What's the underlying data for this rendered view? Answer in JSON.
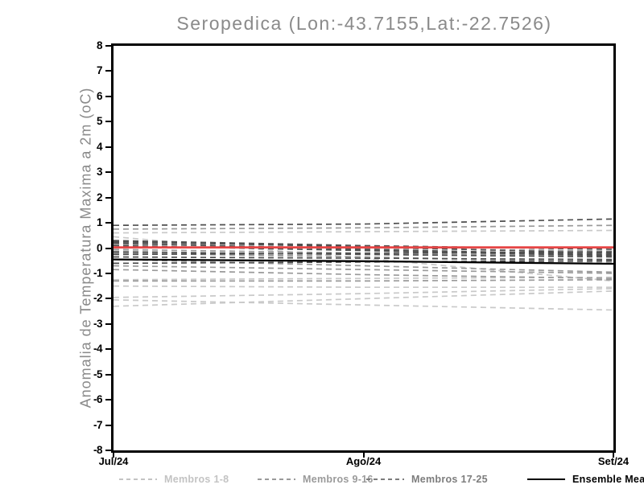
{
  "title": "Seropedica (Lon:-43.7155,Lat:-22.7526)",
  "colors": {
    "background": "#ffffff",
    "axis": "#000000",
    "title_text": "#8a8a8a",
    "zero_line_red": "#e64545",
    "members_1_8": "#c9c9c9",
    "members_9_16": "#9a9a9a",
    "members_17_25": "#4f4f4f",
    "ensemble_mean": "#000000"
  },
  "chart_data": {
    "type": "line",
    "title": "Seropedica (Lon:-43.7155,Lat:-22.7526)",
    "xlabel": "",
    "ylabel": "Anomalia de Temperatura Maxima a 2m (oC)",
    "x_ticklabels": [
      "Jul/24",
      "Ago/24",
      "Set/24"
    ],
    "ylim": [
      -8,
      8
    ],
    "ytick_step": 1,
    "grid": false,
    "legend_position": "bottom",
    "description": "Ensemble forecast of 2m maximum temperature anomaly (oC) for Seropedica from Jul/24 to Set/24; 25 dashed member traces clustered between +1.2 and -2.5, red zero reference line, black ensemble mean near -0.5",
    "series": [
      {
        "name": "Membros 1-8",
        "color": "#c9c9c9",
        "style": "dashed",
        "width": 1.7,
        "members": [
          [
            0.6,
            0.65,
            0.7
          ],
          [
            0.45,
            -0.4,
            -1.3
          ],
          [
            -0.1,
            -0.35,
            -0.6
          ],
          [
            -1.25,
            -1.2,
            -1.15
          ],
          [
            -1.5,
            -1.55,
            -1.55
          ],
          [
            -1.95,
            -1.8,
            -1.6
          ],
          [
            -2.05,
            -2.25,
            -2.45
          ],
          [
            -2.3,
            -2.0,
            -1.7
          ]
        ]
      },
      {
        "name": "Membros 9-16",
        "color": "#9a9a9a",
        "style": "dashed",
        "width": 1.7,
        "members": [
          [
            0.75,
            0.8,
            0.9
          ],
          [
            0.15,
            0.0,
            -0.12
          ],
          [
            -0.05,
            -0.2,
            -0.3
          ],
          [
            -0.2,
            -0.35,
            -0.55
          ],
          [
            -0.45,
            -0.7,
            -0.95
          ],
          [
            -0.7,
            -0.85,
            -1.0
          ],
          [
            -0.85,
            -1.05,
            -1.2
          ],
          [
            -1.3,
            -1.3,
            -1.25
          ]
        ]
      },
      {
        "name": "Membros 17-25",
        "color": "#4f4f4f",
        "style": "dashed",
        "width": 1.7,
        "members": [
          [
            0.9,
            0.95,
            1.15
          ],
          [
            0.3,
            0.1,
            -0.05
          ],
          [
            0.25,
            0.05,
            -0.2
          ],
          [
            0.2,
            -0.05,
            -0.25
          ],
          [
            0.1,
            -0.1,
            -0.3
          ],
          [
            -0.15,
            -0.25,
            -0.35
          ],
          [
            -0.25,
            -0.2,
            -0.15
          ],
          [
            -0.35,
            -0.4,
            -0.45
          ],
          [
            -0.6,
            -0.55,
            -0.5
          ]
        ]
      },
      {
        "name": "zero-reference",
        "color": "#e64545",
        "style": "solid",
        "width": 2.8,
        "in_legend": false,
        "members": [
          [
            0.03,
            0.03,
            0.03
          ]
        ]
      },
      {
        "name": "Ensemble Mean",
        "color": "#000000",
        "style": "solid",
        "width": 2.3,
        "members": [
          [
            -0.45,
            -0.52,
            -0.62
          ]
        ]
      }
    ],
    "legend": [
      {
        "label": "Membros 1-8",
        "color": "#c3c3c3",
        "line": "dashed"
      },
      {
        "label": "Membros 9-16",
        "color": "#9a9a9a",
        "line": "dashed"
      },
      {
        "label": "Membros 17-25",
        "color": "#7d7d7d",
        "line": "dashed"
      },
      {
        "label": "Ensemble Mean",
        "color": "#000000",
        "line": "solid"
      }
    ]
  }
}
